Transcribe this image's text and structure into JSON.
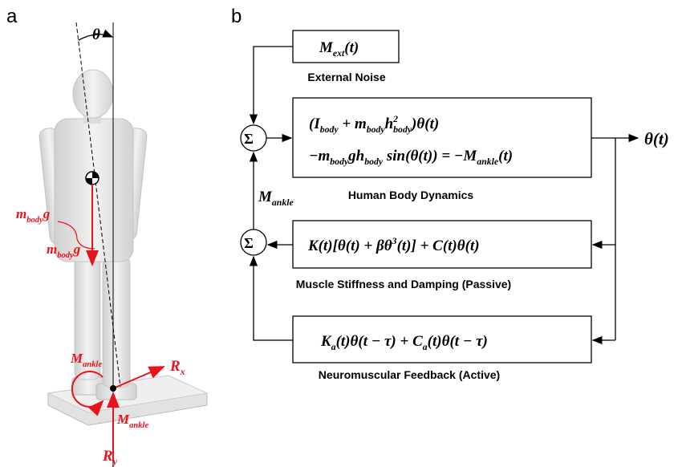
{
  "panel_a": {
    "label": "a",
    "angle": "θ",
    "gravity_labels": [
      [
        {
          "t": "m",
          "sub": "body"
        },
        "g"
      ],
      [
        {
          "t": "m",
          "sub": "body"
        },
        "g"
      ]
    ],
    "ankle_moment_labels": [
      [
        {
          "t": "M",
          "sub": "ankle"
        }
      ],
      [
        {
          "t": "M",
          "sub": "ankle"
        }
      ]
    ],
    "reaction_x": [
      {
        "t": "R",
        "sub": "x"
      }
    ],
    "reaction_y": [
      {
        "t": "R",
        "sub": "y"
      }
    ]
  },
  "panel_b": {
    "label": "b",
    "sum_symbols": [
      "Σ",
      "Σ"
    ],
    "external": {
      "formula": [
        {
          "t": "M",
          "sub": "ext"
        },
        "(t)"
      ],
      "caption": "External Noise"
    },
    "body_dynamics": {
      "lines": [
        [
          "(",
          {
            "t": "I",
            "sub": "body"
          },
          " + ",
          {
            "t": "m",
            "sub": "body"
          },
          {
            "t": "h",
            "sup": "2",
            "sub": "body"
          },
          ")θ(t)"
        ],
        [
          "−",
          {
            "t": "m",
            "sub": "body"
          },
          "g",
          {
            "t": "h",
            "sub": "body"
          },
          " sin(θ(t)) = −",
          {
            "t": "M",
            "sub": "ankle"
          },
          "(t)"
        ]
      ],
      "caption": "Human Body Dynamics"
    },
    "passive": {
      "formula": [
        "K(t)[θ(t) + β",
        {
          "t": "θ",
          "sup": "3"
        },
        "(t)] + C(t)θ(t)"
      ],
      "caption": "Muscle Stiffness and Damping (Passive)"
    },
    "active": {
      "formula": [
        {
          "t": "K",
          "sub": "a"
        },
        "(t)θ(t − τ) + ",
        {
          "t": "C",
          "sub": "a"
        },
        "(t)θ(t − τ)"
      ],
      "caption": "Neuromuscular Feedback (Active)"
    },
    "ankle_label": [
      {
        "t": "M",
        "sub": "ankle"
      }
    ],
    "output": [
      "θ(t)"
    ]
  }
}
